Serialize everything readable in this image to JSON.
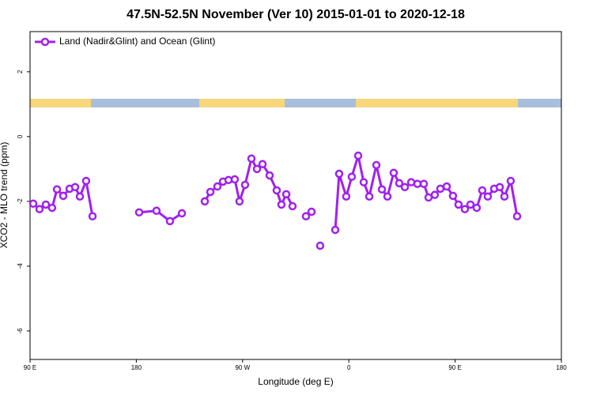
{
  "chart_data": {
    "type": "line",
    "title": "47.5N-52.5N November (Ver 10)   2015-01-01 to 2020-12-18",
    "xlabel": "Longitude (deg E)",
    "ylabel": "XCO2 - MLO trend (ppm)",
    "xlim": [
      90,
      540
    ],
    "xticks": [
      {
        "value": 90,
        "label": "90 E"
      },
      180,
      {
        "value": 270,
        "label": "90 W"
      },
      {
        "value": 360,
        "label": "0"
      },
      {
        "value": 450,
        "label": "90 E"
      },
      {
        "value": 540,
        "label": "180"
      }
    ],
    "ylim": [
      -6.88,
      3.24
    ],
    "yticks": [
      -6,
      -4,
      -2,
      0,
      2
    ],
    "legend": "top-left",
    "series": [
      {
        "name": "Land (Nadir&Glint) and Ocean (Glint)",
        "color": "#a020f0",
        "x": [
          92.7,
          98.0,
          103.4,
          108.7,
          112.8,
          118.1,
          123.5,
          128.2,
          132.2,
          137.5,
          142.9,
          null,
          182.4,
          197.1,
          208.5,
          218.6,
          null,
          238.0,
          242.7,
          248.7,
          253.4,
          258.1,
          263.4,
          267.4,
          272.1,
          277.5,
          282.2,
          286.9,
          292.9,
          298.9,
          302.9,
          307.0,
          312.3,
          null,
          323.7,
          328.4,
          null,
          335.7,
          null,
          348.5,
          351.8,
          357.8,
          362.5,
          367.9,
          372.6,
          377.3,
          383.3,
          388.0,
          392.7,
          398.0,
          402.7,
          407.4,
          412.8,
          418.1,
          423.5,
          427.5,
          432.8,
          437.5,
          442.9,
          448.2,
          452.9,
          458.3,
          463.0,
          468.3,
          473.0,
          477.7,
          483.1,
          487.8,
          491.8,
          497.1,
          502.5
        ],
        "values": [
          -2.07,
          -2.24,
          -2.1,
          -2.2,
          -1.63,
          -1.83,
          -1.61,
          -1.56,
          -1.85,
          -1.37,
          -2.46,
          null,
          -2.34,
          -2.29,
          -2.61,
          -2.37,
          null,
          -2.0,
          -1.71,
          -1.54,
          -1.39,
          -1.34,
          -1.32,
          -2.0,
          -1.49,
          -0.68,
          -1.0,
          -0.85,
          -1.2,
          -1.66,
          -2.1,
          -1.78,
          -2.15,
          null,
          -2.46,
          -2.32,
          null,
          -3.37,
          null,
          -2.88,
          -1.15,
          -1.85,
          -1.24,
          -0.59,
          -1.41,
          -1.85,
          -0.88,
          -1.63,
          -1.85,
          -1.12,
          -1.44,
          -1.56,
          -1.41,
          -1.46,
          -1.46,
          -1.88,
          -1.8,
          -1.61,
          -1.54,
          -1.83,
          -2.1,
          -2.24,
          -2.1,
          -2.2,
          -1.66,
          -1.85,
          -1.61,
          -1.56,
          -1.85,
          -1.37,
          -2.46
        ]
      }
    ]
  }
}
